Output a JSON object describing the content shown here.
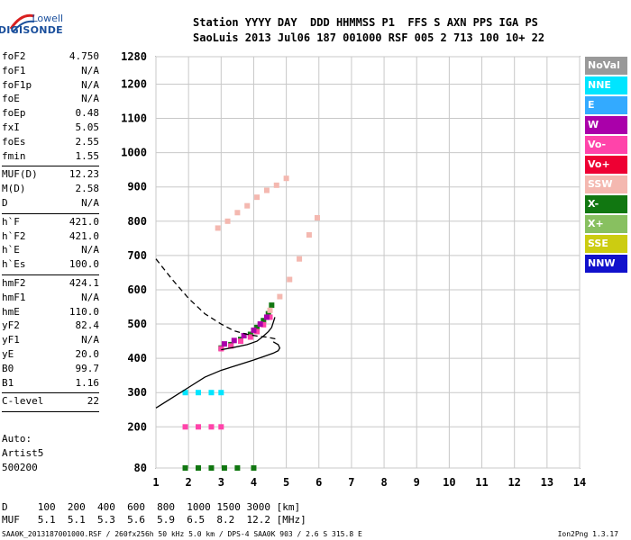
{
  "logo": {
    "line1": "Lowell",
    "line2": "DIGISONDE"
  },
  "header": {
    "line1": "Station YYYY DAY  DDD HHMMSS P1  FFS S AXN PPS IGA PS",
    "line2": "SaoLuis 2013 Jul06 187 001000 RSF 005 2 713 100 10+ 22"
  },
  "params": [
    [
      {
        "k": "foF2",
        "v": "4.750"
      },
      {
        "k": "foF1",
        "v": "N/A"
      },
      {
        "k": "foF1p",
        "v": "N/A"
      },
      {
        "k": "foE",
        "v": "N/A"
      },
      {
        "k": "foEp",
        "v": "0.48"
      },
      {
        "k": "fxI",
        "v": "5.05"
      },
      {
        "k": "foEs",
        "v": "2.55"
      },
      {
        "k": "fmin",
        "v": "1.55"
      }
    ],
    [
      {
        "k": "MUF(D)",
        "v": "12.23"
      },
      {
        "k": "M(D)",
        "v": "2.58"
      },
      {
        "k": "D",
        "v": "N/A"
      }
    ],
    [
      {
        "k": "h`F",
        "v": "421.0"
      },
      {
        "k": "h`F2",
        "v": "421.0"
      },
      {
        "k": "h`E",
        "v": "N/A"
      },
      {
        "k": "h`Es",
        "v": "100.0"
      }
    ],
    [
      {
        "k": "hmF2",
        "v": "424.1"
      },
      {
        "k": "hmF1",
        "v": "N/A"
      },
      {
        "k": "hmE",
        "v": "110.0"
      },
      {
        "k": "yF2",
        "v": "82.4"
      },
      {
        "k": "yF1",
        "v": "N/A"
      },
      {
        "k": "yE",
        "v": "20.0"
      },
      {
        "k": "B0",
        "v": "99.7"
      },
      {
        "k": "B1",
        "v": "1.16"
      }
    ],
    [
      {
        "k": "C-level",
        "v": "22"
      }
    ]
  ],
  "auto": {
    "line1": "Auto:",
    "line2": "Artist5",
    "line3": "500200"
  },
  "legend": [
    {
      "label": "NoVal",
      "color": "#999999"
    },
    {
      "label": "NNE",
      "color": "#00e5ff"
    },
    {
      "label": "E",
      "color": "#33aaff"
    },
    {
      "label": "W",
      "color": "#aa00aa"
    },
    {
      "label": "Vo-",
      "color": "#ff44aa"
    },
    {
      "label": "Vo+",
      "color": "#ee0033"
    },
    {
      "label": "SSW",
      "color": "#f4b8b0"
    },
    {
      "label": "X-",
      "color": "#117711"
    },
    {
      "label": "X+",
      "color": "#88c060"
    },
    {
      "label": "SSE",
      "color": "#cccc11"
    },
    {
      "label": "NNW",
      "color": "#1111cc"
    }
  ],
  "bottom": {
    "line1": "D     100  200  400  600  800  1000 1500 3000 [km]",
    "line2": "MUF   5.1  5.1  5.3  5.6  5.9  6.5  8.2  12.2 [MHz]"
  },
  "footer": {
    "left": "SAA0K_2013187001000.RSF / 260fx256h 50 kHz 5.0 km / DPS-4 SAA0K 903 / 2.6 S 315.8 E",
    "right": "Ion2Png 1.3.17"
  },
  "chart_data": {
    "type": "scatter",
    "xlim": [
      1,
      14
    ],
    "ylim": [
      80,
      1280
    ],
    "xticks": [
      1,
      2,
      3,
      4,
      5,
      6,
      7,
      8,
      9,
      10,
      11,
      12,
      13,
      14
    ],
    "yticks": [
      80,
      200,
      300,
      400,
      500,
      600,
      700,
      800,
      900,
      1000,
      1100,
      1200,
      1280
    ],
    "grid": true,
    "curves": [
      {
        "style": "solid",
        "x": [
          1.0,
          1.5,
          2.0,
          2.5,
          3.0,
          3.5,
          4.0,
          4.3,
          4.6,
          4.75,
          4.8,
          4.75,
          4.6
        ],
        "y": [
          255,
          285,
          315,
          345,
          365,
          380,
          395,
          405,
          415,
          422,
          430,
          440,
          448
        ]
      },
      {
        "style": "dashed",
        "x": [
          1.0,
          1.5,
          2.0,
          2.5,
          3.0,
          3.4,
          3.8,
          4.1,
          4.4,
          4.6,
          4.75
        ],
        "y": [
          690,
          630,
          575,
          530,
          500,
          480,
          470,
          465,
          462,
          458,
          455
        ]
      },
      {
        "style": "solid",
        "x": [
          3.0,
          3.4,
          3.8,
          4.1,
          4.3,
          4.45,
          4.55,
          4.6,
          4.65
        ],
        "y": [
          425,
          432,
          440,
          450,
          465,
          478,
          490,
          505,
          520
        ]
      }
    ],
    "echo_traces": [
      {
        "mode": "X-",
        "points": [
          [
            3.0,
            430
          ],
          [
            3.3,
            440
          ],
          [
            3.6,
            455
          ],
          [
            3.9,
            470
          ],
          [
            4.1,
            490
          ],
          [
            4.3,
            510
          ],
          [
            4.45,
            530
          ],
          [
            4.55,
            555
          ]
        ]
      },
      {
        "mode": "Vo-",
        "points": [
          [
            3.0,
            428
          ],
          [
            3.3,
            436
          ],
          [
            3.6,
            450
          ],
          [
            3.9,
            462
          ],
          [
            4.1,
            478
          ],
          [
            4.3,
            498
          ],
          [
            4.5,
            520
          ]
        ]
      },
      {
        "mode": "W",
        "points": [
          [
            3.1,
            442
          ],
          [
            3.4,
            452
          ],
          [
            3.7,
            466
          ],
          [
            4.0,
            482
          ],
          [
            4.2,
            500
          ],
          [
            4.4,
            520
          ]
        ]
      },
      {
        "mode": "SSW",
        "points": [
          [
            4.5,
            540
          ],
          [
            4.8,
            580
          ],
          [
            5.1,
            630
          ],
          [
            5.4,
            690
          ],
          [
            5.7,
            760
          ],
          [
            5.95,
            810
          ]
        ]
      },
      {
        "mode": "SSW",
        "points": [
          [
            2.9,
            780
          ],
          [
            3.2,
            800
          ],
          [
            3.5,
            825
          ],
          [
            3.8,
            845
          ],
          [
            4.1,
            870
          ],
          [
            4.4,
            890
          ],
          [
            4.7,
            905
          ],
          [
            5.0,
            925
          ]
        ]
      },
      {
        "mode": "X-",
        "points": [
          [
            1.9,
            80
          ],
          [
            2.3,
            80
          ],
          [
            2.7,
            80
          ],
          [
            3.1,
            80
          ],
          [
            3.5,
            80
          ],
          [
            4.0,
            80
          ]
        ]
      },
      {
        "mode": "Vo-",
        "points": [
          [
            1.9,
            200
          ],
          [
            2.3,
            200
          ],
          [
            2.7,
            200
          ],
          [
            3.0,
            200
          ]
        ]
      },
      {
        "mode": "NNE",
        "points": [
          [
            1.9,
            300
          ],
          [
            2.3,
            300
          ],
          [
            2.7,
            300
          ],
          [
            3.0,
            300
          ]
        ]
      }
    ]
  }
}
